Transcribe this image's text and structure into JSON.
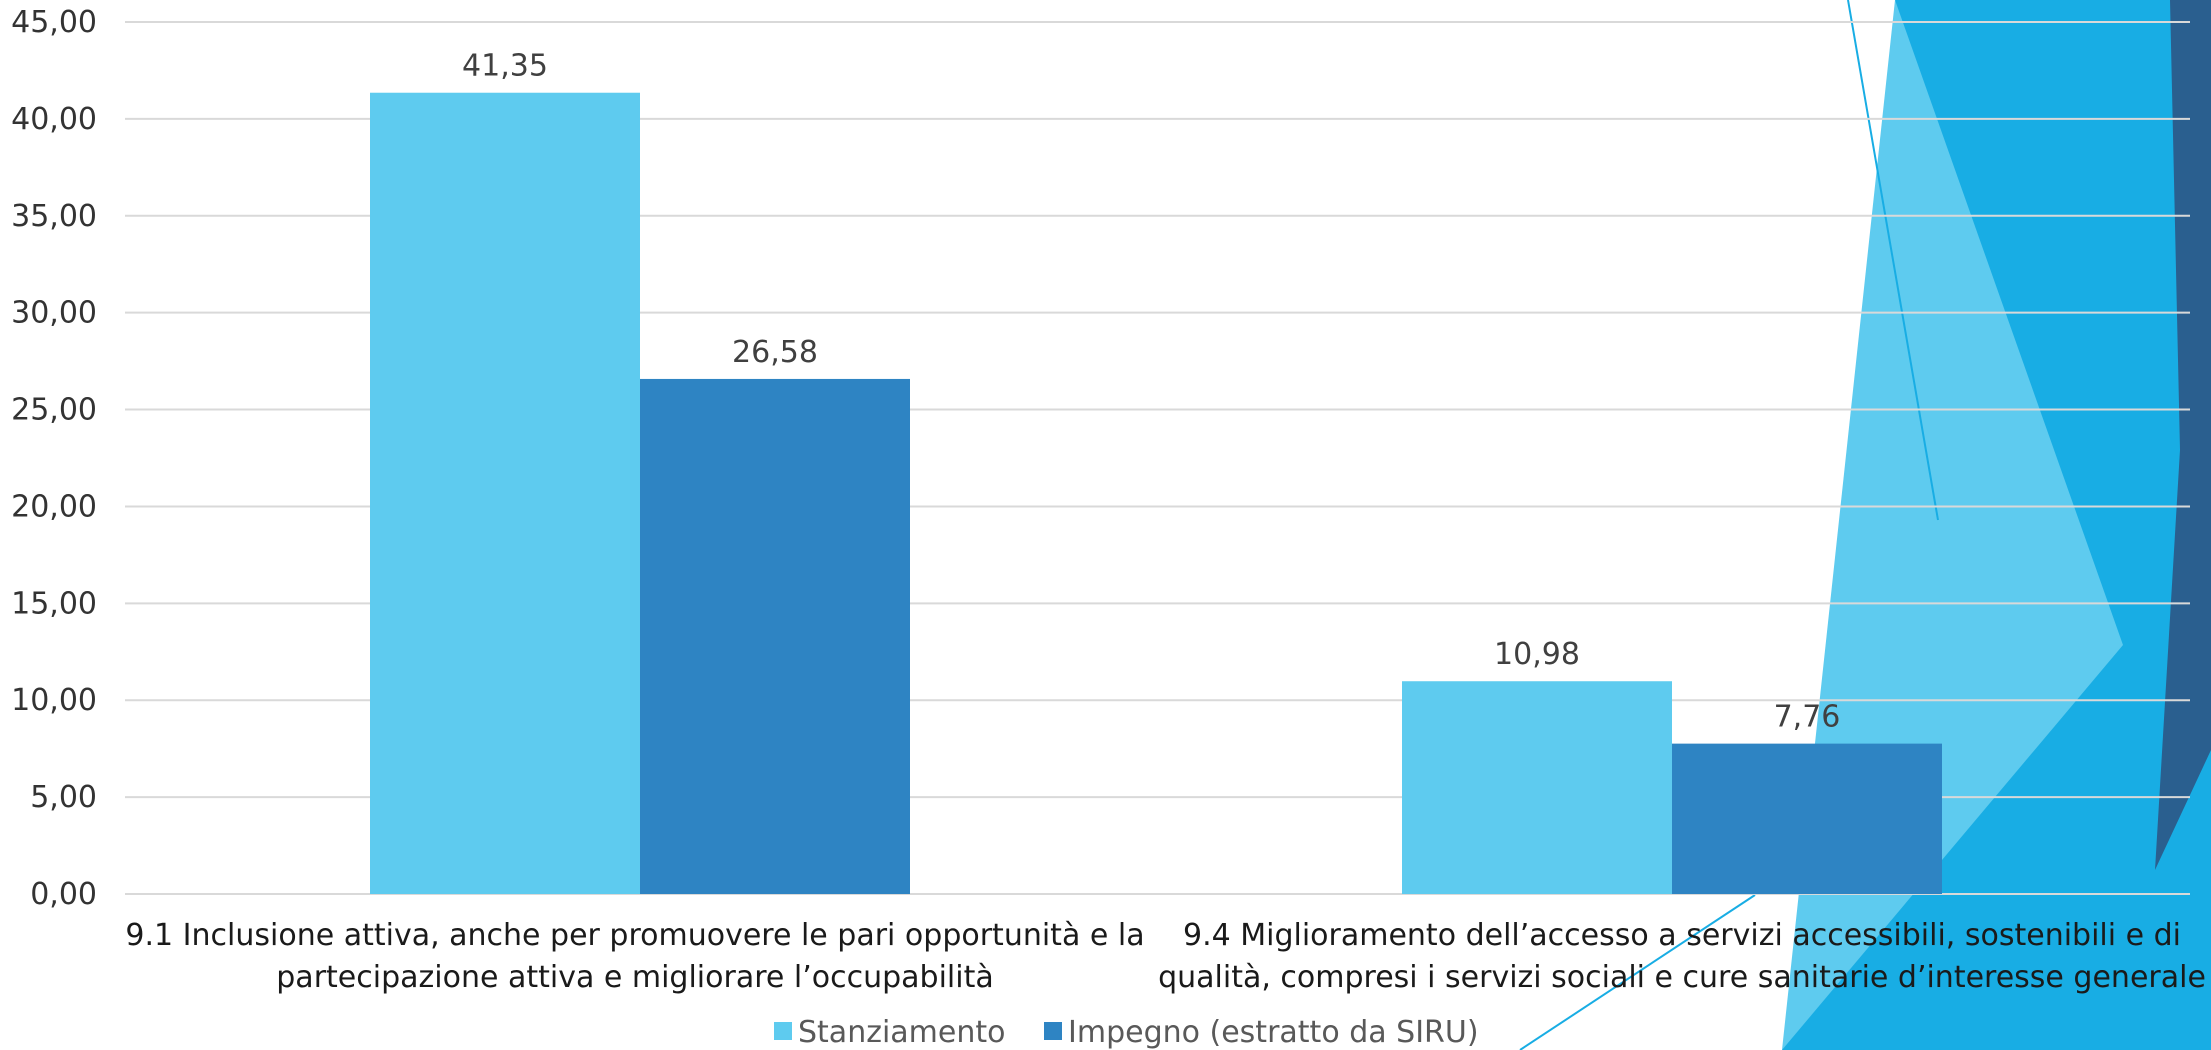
{
  "chart_data": {
    "type": "bar",
    "title": "",
    "xlabel": "",
    "ylabel": "",
    "ylim": [
      0,
      45
    ],
    "yticks": [
      "0,00",
      "5,00",
      "10,00",
      "15,00",
      "20,00",
      "25,00",
      "30,00",
      "35,00",
      "40,00",
      "45,00"
    ],
    "ytick_values": [
      0,
      5,
      10,
      15,
      20,
      25,
      30,
      35,
      40,
      45
    ],
    "grid": true,
    "legend_position": "bottom",
    "categories": [
      {
        "lines": [
          "9.1 Inclusione attiva, anche per promuovere le pari opportunità e la",
          "partecipazione attiva e migliorare l’occupabilità"
        ]
      },
      {
        "lines": [
          "9.4 Miglioramento dell’accesso a servizi accessibili, sostenibili e di",
          "qualità, compresi i servizi sociali e cure sanitarie d’interesse generale"
        ]
      }
    ],
    "series": [
      {
        "name": "Stanziamento",
        "color": "#5ecbef",
        "values": [
          41.35,
          10.98
        ],
        "labels": [
          "41,35",
          "10,98"
        ]
      },
      {
        "name": "Impegno (estratto da SIRU)",
        "color": "#2e84c3",
        "values": [
          26.58,
          7.76
        ],
        "labels": [
          "26,58",
          "7,76"
        ]
      }
    ]
  },
  "decoration": {
    "colors": {
      "primary": "#18ade4",
      "light": "#5ecbef",
      "dark": "#2a5f8f",
      "line": "#18ade4"
    }
  }
}
